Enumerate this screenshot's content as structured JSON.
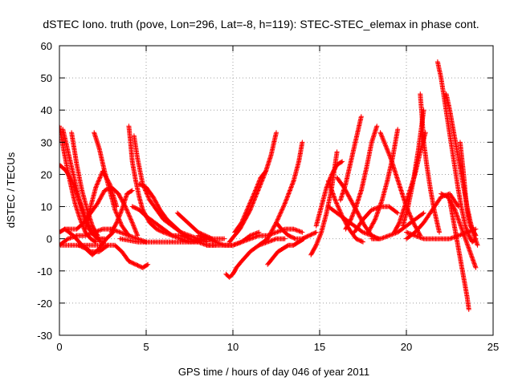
{
  "chart_data": {
    "type": "scatter",
    "title": "dSTEC Iono. truth (pove, Lon=296, Lat=-8, h=119): STEC-STEC_elemax in phase cont.",
    "xlabel": "GPS time / hours of day 046 of year 2011",
    "ylabel": "dSTEC  / TECUs",
    "xlim": [
      0,
      25
    ],
    "ylim": [
      -30,
      60
    ],
    "xticks": [
      0,
      5,
      10,
      15,
      20,
      25
    ],
    "yticks": [
      -30,
      -20,
      -10,
      0,
      10,
      20,
      30,
      40,
      50,
      60
    ],
    "grid": true,
    "marker": "+",
    "color": "#ff0000",
    "series": [
      {
        "x": [
          0.0,
          0.3,
          0.6,
          0.9,
          1.2,
          1.5,
          1.8,
          2.1
        ],
        "y": [
          35,
          26,
          18,
          11,
          6,
          2,
          0,
          -1
        ]
      },
      {
        "x": [
          0.0,
          0.4,
          0.8,
          1.2,
          1.6,
          2.0,
          2.4
        ],
        "y": [
          23,
          21,
          17,
          11,
          5,
          1,
          -1
        ]
      },
      {
        "x": [
          0.2,
          0.5,
          0.8,
          1.1,
          1.4,
          1.7,
          2.0,
          2.3,
          2.6
        ],
        "y": [
          34,
          27,
          20,
          13,
          7,
          3,
          1,
          0,
          0
        ]
      },
      {
        "x": [
          0.7,
          1.0,
          1.3,
          1.6,
          1.9,
          2.2
        ],
        "y": [
          33,
          23,
          15,
          9,
          4,
          1
        ]
      },
      {
        "x": [
          0.0,
          0.5,
          1.0,
          1.5,
          2.0,
          2.5,
          3.0,
          3.5,
          4.0,
          4.5,
          5.0
        ],
        "y": [
          -2,
          0,
          1,
          1,
          2,
          3,
          3,
          2,
          1,
          0,
          -1
        ]
      },
      {
        "x": [
          0.0,
          0.3,
          0.6,
          1.0,
          1.4,
          1.8,
          2.2,
          2.6,
          3.0,
          3.4,
          3.8,
          4.2,
          4.5
        ],
        "y": [
          2,
          3,
          3,
          3,
          5,
          8,
          11,
          15,
          16,
          14,
          10,
          5,
          1
        ]
      },
      {
        "x": [
          0.3,
          0.8,
          1.3,
          1.8,
          2.3,
          2.8
        ],
        "y": [
          3,
          1,
          -2,
          -4,
          -4,
          -2
        ]
      },
      {
        "x": [
          0.0,
          0.8,
          1.6,
          2.4,
          3.2,
          3.6,
          4.0,
          4.4,
          4.8,
          5.1
        ],
        "y": [
          -2,
          -2,
          -2,
          -2,
          -2,
          -4,
          -7,
          -8,
          -9,
          -8
        ]
      },
      {
        "x": [
          1.1,
          1.5,
          1.9,
          2.3,
          2.7,
          3.1
        ],
        "y": [
          -2,
          -3,
          -5,
          -3,
          0,
          2
        ]
      },
      {
        "x": [
          1.5,
          1.8,
          2.1,
          2.5,
          2.9,
          3.3
        ],
        "y": [
          3,
          10,
          16,
          21,
          17,
          10
        ]
      },
      {
        "x": [
          2.0,
          2.3,
          2.6,
          2.9,
          3.2,
          3.6,
          4.0
        ],
        "y": [
          33,
          28,
          21,
          15,
          9,
          4,
          1
        ]
      },
      {
        "x": [
          3.0,
          3.3,
          3.6,
          3.9,
          4.2
        ],
        "y": [
          2,
          5,
          9,
          14,
          15
        ]
      },
      {
        "x": [
          4.0,
          4.1,
          4.2,
          4.4,
          4.6,
          4.8,
          5.2,
          5.6,
          6.0,
          6.5,
          7.0,
          7.5
        ],
        "y": [
          35,
          30,
          24,
          18,
          13,
          9,
          5,
          3,
          2,
          1,
          1,
          0
        ]
      },
      {
        "x": [
          4.3,
          4.5,
          4.8,
          5.2,
          5.6,
          6.0,
          6.5,
          7.0,
          7.5,
          8.0,
          8.5
        ],
        "y": [
          32,
          25,
          17,
          12,
          9,
          6,
          4,
          2,
          1,
          0,
          -1
        ]
      },
      {
        "x": [
          4.6,
          5.0,
          5.4,
          5.8,
          6.2,
          6.6,
          7.0,
          7.5,
          8.0
        ],
        "y": [
          17,
          16,
          13,
          9,
          6,
          4,
          2,
          0,
          -1
        ]
      },
      {
        "x": [
          4.2,
          4.6,
          5.0,
          5.5,
          6.0,
          6.5,
          7.0,
          7.5,
          8.0,
          8.5,
          9.0
        ],
        "y": [
          10,
          9,
          7,
          5,
          3,
          1,
          0,
          -1,
          -1,
          -2,
          -2
        ]
      },
      {
        "x": [
          6.8,
          7.2,
          7.6,
          8.0,
          8.4,
          8.8
        ],
        "y": [
          8,
          6,
          4,
          2,
          1,
          0
        ]
      },
      {
        "x": [
          3.5,
          4.5,
          5.5,
          6.5,
          7.5,
          8.5,
          9.5
        ],
        "y": [
          0,
          -1,
          -1,
          -1,
          -1,
          0,
          0
        ]
      },
      {
        "x": [
          8.0,
          8.5,
          9.0,
          9.5,
          10.0,
          10.5,
          11.0,
          11.5
        ],
        "y": [
          1,
          0,
          -1,
          -2,
          -2,
          -1,
          1,
          2
        ]
      },
      {
        "x": [
          9.6,
          9.8,
          10.0,
          10.2,
          10.5,
          11.0,
          11.5,
          12.0,
          12.5,
          13.0
        ],
        "y": [
          -11,
          -12,
          -11,
          -9,
          -7,
          -4,
          -2,
          -1,
          0,
          0
        ]
      },
      {
        "x": [
          9.8,
          10.1,
          10.4,
          10.7,
          11.0,
          11.3,
          11.6,
          11.9,
          12.2,
          12.5
        ],
        "y": [
          -1,
          1,
          3,
          6,
          9,
          13,
          17,
          21,
          26,
          33
        ]
      },
      {
        "x": [
          10.1,
          10.5,
          10.9,
          11.3,
          11.6,
          11.9
        ],
        "y": [
          2,
          5,
          10,
          15,
          19,
          21
        ]
      },
      {
        "x": [
          8.5,
          9.0,
          9.5,
          10.0,
          10.5,
          11.0,
          11.5,
          12.0,
          12.5,
          13.0,
          13.5,
          14.0
        ],
        "y": [
          -2,
          -2,
          -2,
          -2,
          -1,
          0,
          1,
          1,
          2,
          3,
          3,
          2
        ]
      },
      {
        "x": [
          12.0,
          12.3,
          12.6,
          12.9,
          13.2,
          13.5,
          13.8,
          14.1
        ],
        "y": [
          -8,
          -6,
          -4,
          -3,
          -2,
          -2,
          -1,
          0
        ]
      },
      {
        "x": [
          11.5,
          12.0,
          12.5,
          13.0,
          13.5,
          13.8,
          14.0
        ],
        "y": [
          -2,
          0,
          5,
          11,
          18,
          24,
          30
        ]
      },
      {
        "x": [
          12.5,
          12.8,
          13.2,
          13.6,
          14.0,
          14.4,
          14.8
        ],
        "y": [
          5,
          3,
          1,
          0,
          0,
          1,
          2
        ]
      },
      {
        "x": [
          14.5,
          14.8,
          15.1,
          15.4,
          15.7,
          16.0
        ],
        "y": [
          -5,
          -2,
          2,
          8,
          16,
          27
        ]
      },
      {
        "x": [
          14.8,
          15.1,
          15.4,
          15.7,
          16.0,
          16.3
        ],
        "y": [
          4,
          10,
          16,
          20,
          23,
          24
        ]
      },
      {
        "x": [
          15.5,
          15.9,
          16.3,
          16.7,
          17.1,
          17.5
        ],
        "y": [
          18,
          12,
          7,
          3,
          0,
          -1
        ]
      },
      {
        "x": [
          15.5,
          16.0,
          16.5,
          17.0,
          17.5,
          18.0
        ],
        "y": [
          10,
          8,
          6,
          4,
          2,
          1
        ]
      },
      {
        "x": [
          16.0,
          16.4,
          16.8,
          17.2,
          17.6,
          18.0,
          18.4
        ],
        "y": [
          19,
          16,
          12,
          8,
          4,
          1,
          0
        ]
      },
      {
        "x": [
          16.2,
          16.5,
          16.8,
          17.1,
          17.4
        ],
        "y": [
          12,
          17,
          24,
          31,
          38
        ]
      },
      {
        "x": [
          16.5,
          16.8,
          17.1,
          17.4,
          17.7,
          18.0,
          18.3
        ],
        "y": [
          3,
          6,
          10,
          15,
          22,
          30,
          35
        ]
      },
      {
        "x": [
          17.0,
          17.5,
          18.0,
          18.5,
          19.0,
          19.5
        ],
        "y": [
          2,
          6,
          9,
          10,
          10,
          8
        ]
      },
      {
        "x": [
          17.8,
          18.2,
          18.6,
          18.9,
          19.2,
          19.5
        ],
        "y": [
          2,
          6,
          12,
          18,
          25,
          34
        ]
      },
      {
        "x": [
          18.5,
          18.8,
          19.1,
          19.4,
          19.7,
          20.0,
          20.4,
          20.8
        ],
        "y": [
          33,
          29,
          25,
          20,
          15,
          10,
          5,
          1
        ]
      },
      {
        "x": [
          18.0,
          18.5,
          19.0,
          19.5,
          20.0,
          20.5,
          21.0
        ],
        "y": [
          0,
          0,
          1,
          2,
          4,
          6,
          8
        ]
      },
      {
        "x": [
          19.3,
          19.6,
          19.9,
          20.2,
          20.5,
          20.8,
          21.1
        ],
        "y": [
          2,
          5,
          10,
          15,
          20,
          27,
          33
        ]
      },
      {
        "x": [
          19.8,
          20.1,
          20.4,
          20.7,
          21.0
        ],
        "y": [
          4,
          10,
          18,
          28,
          40
        ]
      },
      {
        "x": [
          20.8,
          20.9,
          21.0,
          21.2,
          21.4,
          21.6,
          21.9
        ],
        "y": [
          45,
          38,
          30,
          22,
          15,
          9,
          2
        ]
      },
      {
        "x": [
          20.0,
          20.5,
          21.0,
          21.5,
          22.0,
          22.5,
          23.0
        ],
        "y": [
          0,
          2,
          5,
          9,
          13,
          14,
          10
        ]
      },
      {
        "x": [
          21.8,
          22.0,
          22.2,
          22.4,
          22.6,
          22.8,
          23.0,
          23.2,
          23.4,
          23.6,
          23.8,
          24.0
        ],
        "y": [
          55,
          50,
          43,
          36,
          29,
          22,
          15,
          9,
          4,
          1,
          -1,
          0
        ]
      },
      {
        "x": [
          22.3,
          22.5,
          22.7,
          22.9,
          23.1,
          23.3,
          23.5,
          23.7,
          23.9,
          24.1
        ],
        "y": [
          45,
          40,
          34,
          28,
          22,
          16,
          10,
          5,
          1,
          -2
        ]
      },
      {
        "x": [
          23.1,
          23.2,
          23.3,
          23.4,
          23.5,
          23.6,
          23.7,
          23.8,
          23.9,
          24.0
        ],
        "y": [
          30,
          25,
          20,
          14,
          9,
          6,
          4,
          3,
          2,
          1
        ]
      },
      {
        "x": [
          22.5,
          22.7,
          22.9,
          23.1,
          23.3,
          23.5,
          23.6
        ],
        "y": [
          12,
          6,
          0,
          -6,
          -12,
          -18,
          -22
        ]
      },
      {
        "x": [
          22.0,
          22.4,
          22.8,
          23.2,
          23.6,
          24.0
        ],
        "y": [
          14,
          13,
          9,
          3,
          -3,
          -9
        ]
      },
      {
        "x": [
          20.0,
          20.5,
          21.0,
          21.5,
          22.0,
          22.5,
          23.0,
          23.5,
          24.0
        ],
        "y": [
          2,
          1,
          0,
          0,
          0,
          0,
          1,
          2,
          3
        ]
      }
    ]
  }
}
